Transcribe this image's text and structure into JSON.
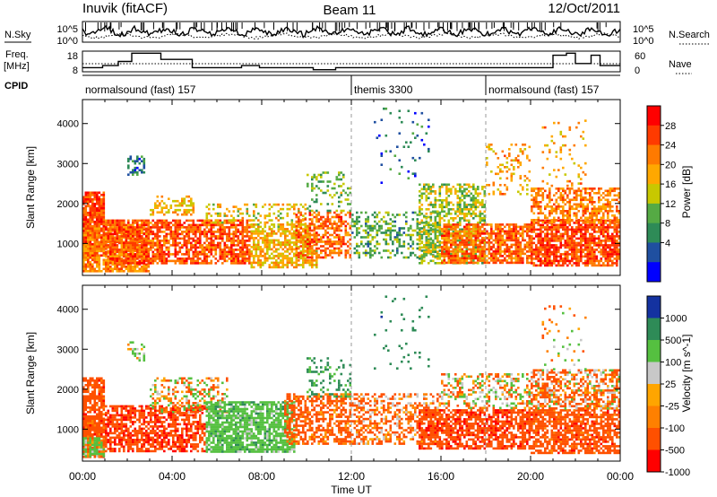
{
  "header": {
    "station": "Inuvik (fitACF)",
    "beam": "Beam 11",
    "date": "12/Oct/2011"
  },
  "noise_panel": {
    "left_label": "N.Sky",
    "right_label": "N.Search",
    "left_ticks": [
      "10^5",
      "10^0"
    ],
    "right_ticks": [
      "10^5",
      "10^0"
    ]
  },
  "freq_panel": {
    "left_label_line1": "Freq.",
    "left_label_line2": "[MHz]",
    "right_label": "Nave",
    "left_ticks": [
      "18",
      "8"
    ],
    "right_ticks": [
      "60",
      "0"
    ],
    "freq_steps": [
      {
        "t": 0.0,
        "v": 10
      },
      {
        "t": 0.9,
        "v": 11
      },
      {
        "t": 1.6,
        "v": 13
      },
      {
        "t": 2.2,
        "v": 17
      },
      {
        "t": 3.5,
        "v": 14
      },
      {
        "t": 4.9,
        "v": 10
      },
      {
        "t": 7.1,
        "v": 11
      },
      {
        "t": 7.9,
        "v": 10
      },
      {
        "t": 10.3,
        "v": 9
      },
      {
        "t": 11.3,
        "v": 10
      },
      {
        "t": 12.0,
        "v": 10
      },
      {
        "t": 18.2,
        "v": 10
      },
      {
        "t": 21.0,
        "v": 16
      },
      {
        "t": 21.6,
        "v": 17
      },
      {
        "t": 22.0,
        "v": 12
      },
      {
        "t": 22.7,
        "v": 16
      },
      {
        "t": 23.1,
        "v": 11
      },
      {
        "t": 24.0,
        "v": 11
      }
    ]
  },
  "cpid": {
    "label": "CPID",
    "segments": [
      {
        "name": "normalsound (fast) 157",
        "start": 0,
        "end": 12
      },
      {
        "name": "themis 3300",
        "start": 12,
        "end": 18
      },
      {
        "name": "normalsound (fast) 157",
        "start": 18,
        "end": 24
      }
    ]
  },
  "power_colorbar": {
    "label": "Power [dB]",
    "ticks": [
      "28",
      "24",
      "20",
      "16",
      "12",
      "8",
      "4"
    ],
    "colors": [
      "#ff0000",
      "#ff3a00",
      "#ff7a00",
      "#ffa800",
      "#c8c800",
      "#55aa44",
      "#2e8b57",
      "#1f4fa0",
      "#0000ff"
    ]
  },
  "velocity_colorbar": {
    "label": "Velocity [m s^-1]",
    "ticks": [
      "1000",
      "500",
      "100",
      "25",
      "-25",
      "-100",
      "-500",
      "-1000"
    ],
    "colors": [
      "#1432a0",
      "#2e8b57",
      "#55c040",
      "#c8c8c8",
      "#ffa500",
      "#ff8000",
      "#ff5000",
      "#ff0000"
    ]
  },
  "chart_data": {
    "type": "heatmap",
    "xlabel": "Time UT",
    "ylabel": "Slant Range [km]",
    "xlim": [
      0,
      24
    ],
    "ylim": [
      200,
      4600
    ],
    "x_ticks": [
      "00:00",
      "04:00",
      "08:00",
      "12:00",
      "16:00",
      "20:00",
      "00:00"
    ],
    "y_ticks": [
      "1000",
      "2000",
      "3000",
      "4000"
    ],
    "dashed_lines_ut": [
      12,
      18
    ],
    "power_bands": [
      {
        "t0": 0.0,
        "t1": 1.0,
        "r0": 700,
        "r1": 2300,
        "dens": 0.9,
        "p": 26
      },
      {
        "t0": 0.0,
        "t1": 3.0,
        "r0": 300,
        "r1": 1400,
        "dens": 0.8,
        "p": 22
      },
      {
        "t0": 1.0,
        "t1": 7.5,
        "r0": 500,
        "r1": 1600,
        "dens": 0.75,
        "p": 25
      },
      {
        "t0": 2.0,
        "t1": 2.8,
        "r0": 2700,
        "r1": 3200,
        "dens": 0.45,
        "p": 6
      },
      {
        "t0": 3.0,
        "t1": 5.0,
        "r0": 1700,
        "r1": 2200,
        "dens": 0.45,
        "p": 18
      },
      {
        "t0": 5.5,
        "t1": 10.0,
        "r0": 1500,
        "r1": 2000,
        "dens": 0.35,
        "p": 17
      },
      {
        "t0": 7.5,
        "t1": 10.5,
        "r0": 400,
        "r1": 1500,
        "dens": 0.65,
        "p": 18
      },
      {
        "t0": 9.5,
        "t1": 12.0,
        "r0": 600,
        "r1": 1800,
        "dens": 0.55,
        "p": 24
      },
      {
        "t0": 10.0,
        "t1": 12.0,
        "r0": 1800,
        "r1": 2800,
        "dens": 0.25,
        "p": 12
      },
      {
        "t0": 12.0,
        "t1": 16.0,
        "r0": 600,
        "r1": 1800,
        "dens": 0.4,
        "p": 10
      },
      {
        "t0": 13.0,
        "t1": 15.5,
        "r0": 2500,
        "r1": 4400,
        "dens": 0.06,
        "p": 6
      },
      {
        "t0": 15.0,
        "t1": 18.0,
        "r0": 500,
        "r1": 2500,
        "dens": 0.5,
        "p": 14
      },
      {
        "t0": 16.0,
        "t1": 20.0,
        "r0": 500,
        "r1": 1500,
        "dens": 0.75,
        "p": 24
      },
      {
        "t0": 18.0,
        "t1": 20.0,
        "r0": 2200,
        "r1": 3500,
        "dens": 0.18,
        "p": 20
      },
      {
        "t0": 20.0,
        "t1": 24.0,
        "r0": 400,
        "r1": 1600,
        "dens": 0.8,
        "p": 26
      },
      {
        "t0": 20.0,
        "t1": 24.0,
        "r0": 1500,
        "r1": 2400,
        "dens": 0.55,
        "p": 22
      },
      {
        "t0": 20.5,
        "t1": 22.5,
        "r0": 2400,
        "r1": 4100,
        "dens": 0.1,
        "p": 20
      }
    ],
    "velocity_bands": [
      {
        "t0": 0.0,
        "t1": 1.0,
        "r0": 300,
        "r1": 2300,
        "dens": 0.8,
        "v": -300
      },
      {
        "t0": 0.0,
        "t1": 1.0,
        "r0": 300,
        "r1": 800,
        "dens": 0.8,
        "v": 150
      },
      {
        "t0": 1.0,
        "t1": 5.5,
        "r0": 400,
        "r1": 1600,
        "dens": 0.7,
        "v": -400
      },
      {
        "t0": 2.0,
        "t1": 2.8,
        "r0": 2700,
        "r1": 3200,
        "dens": 0.4,
        "v": 200
      },
      {
        "t0": 3.0,
        "t1": 6.5,
        "r0": 1400,
        "r1": 2300,
        "dens": 0.4,
        "v": 0
      },
      {
        "t0": 5.5,
        "t1": 9.5,
        "r0": 400,
        "r1": 1700,
        "dens": 0.8,
        "v": 300
      },
      {
        "t0": 9.0,
        "t1": 12.0,
        "r0": 600,
        "r1": 1900,
        "dens": 0.55,
        "v": -250
      },
      {
        "t0": 10.0,
        "t1": 12.0,
        "r0": 1800,
        "r1": 2800,
        "dens": 0.25,
        "v": 600
      },
      {
        "t0": 12.0,
        "t1": 16.0,
        "r0": 600,
        "r1": 1900,
        "dens": 0.45,
        "v": -150
      },
      {
        "t0": 13.0,
        "t1": 15.5,
        "r0": 2500,
        "r1": 4400,
        "dens": 0.05,
        "v": 800
      },
      {
        "t0": 15.0,
        "t1": 20.0,
        "r0": 500,
        "r1": 1500,
        "dens": 0.7,
        "v": -350
      },
      {
        "t0": 16.0,
        "t1": 20.0,
        "r0": 1500,
        "r1": 2400,
        "dens": 0.4,
        "v": 0
      },
      {
        "t0": 20.0,
        "t1": 24.0,
        "r0": 400,
        "r1": 1500,
        "dens": 0.75,
        "v": -300
      },
      {
        "t0": 20.0,
        "t1": 24.0,
        "r0": 1500,
        "r1": 2500,
        "dens": 0.6,
        "v": -120
      },
      {
        "t0": 20.5,
        "t1": 22.5,
        "r0": 2400,
        "r1": 4100,
        "dens": 0.08,
        "v": 0
      }
    ]
  }
}
